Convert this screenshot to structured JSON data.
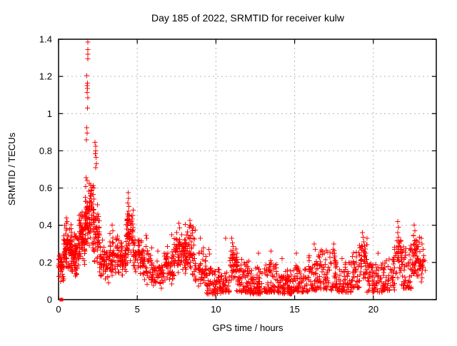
{
  "chart_data": {
    "type": "scatter",
    "title": "Day 185 of 2022, SRMTID for receiver kulw",
    "xlabel": "GPS time / hours",
    "ylabel": "SRMTID / TECUs",
    "xlim": [
      0,
      24
    ],
    "ylim": [
      0,
      1.4
    ],
    "xticks": [
      0,
      5,
      10,
      15,
      20
    ],
    "yticks": [
      0,
      0.2,
      0.4,
      0.6,
      0.8,
      1,
      1.2,
      1.4
    ],
    "grid": true,
    "legend": "none",
    "marker": {
      "shape": "plus",
      "size": 7
    },
    "colors": {
      "marker": "#ff0000",
      "grid": "#b5b5b5",
      "axis": "#000000",
      "text": "#000000",
      "background": "#ffffff"
    },
    "origin_marker": {
      "x": 0.18,
      "y": 0.0,
      "shape": "filled-square",
      "size": 5
    },
    "notable_points": [
      [
        1.86,
        1.385
      ],
      [
        1.85,
        1.345
      ],
      [
        1.87,
        1.32
      ],
      [
        1.86,
        1.295
      ],
      [
        1.8,
        1.205
      ],
      [
        1.83,
        1.165
      ],
      [
        1.81,
        1.15
      ],
      [
        1.84,
        1.135
      ],
      [
        1.82,
        1.115
      ],
      [
        1.85,
        1.085
      ],
      [
        1.83,
        1.03
      ],
      [
        1.8,
        0.925
      ],
      [
        1.82,
        0.895
      ],
      [
        1.78,
        0.86
      ],
      [
        2.32,
        0.845
      ],
      [
        2.35,
        0.825
      ],
      [
        2.36,
        0.8
      ],
      [
        2.33,
        0.785
      ],
      [
        2.38,
        0.765
      ],
      [
        2.4,
        0.73
      ],
      [
        2.35,
        0.71
      ],
      [
        1.75,
        0.655
      ],
      [
        1.82,
        0.64
      ],
      [
        1.95,
        0.625
      ],
      [
        2.05,
        0.615
      ],
      [
        2.25,
        0.6
      ],
      [
        2.1,
        0.585
      ],
      [
        2.2,
        0.565
      ],
      [
        1.7,
        0.55
      ],
      [
        4.42,
        0.575
      ],
      [
        4.45,
        0.545
      ],
      [
        4.4,
        0.52
      ],
      [
        4.47,
        0.5
      ],
      [
        4.44,
        0.475
      ],
      [
        4.5,
        0.455
      ],
      [
        4.38,
        0.43
      ],
      [
        4.55,
        0.42
      ],
      [
        4.6,
        0.4
      ],
      [
        0.5,
        0.44
      ],
      [
        0.55,
        0.42
      ],
      [
        1.4,
        0.46
      ],
      [
        1.5,
        0.47
      ],
      [
        1.45,
        0.44
      ],
      [
        3.4,
        0.4
      ],
      [
        3.45,
        0.37
      ],
      [
        2.8,
        0.32
      ],
      [
        5.55,
        0.345
      ],
      [
        5.6,
        0.33
      ],
      [
        6.3,
        0.26
      ],
      [
        7.2,
        0.35
      ],
      [
        7.65,
        0.41
      ],
      [
        7.7,
        0.385
      ],
      [
        8.35,
        0.425
      ],
      [
        8.4,
        0.4
      ],
      [
        8.3,
        0.39
      ],
      [
        8.5,
        0.37
      ],
      [
        9.0,
        0.33
      ],
      [
        9.55,
        0.27
      ],
      [
        9.6,
        0.245
      ],
      [
        10.62,
        0.33
      ],
      [
        11.0,
        0.33
      ],
      [
        11.05,
        0.305
      ],
      [
        11.1,
        0.285
      ],
      [
        10.95,
        0.26
      ],
      [
        11.05,
        0.24
      ],
      [
        12.7,
        0.25
      ],
      [
        13.5,
        0.26
      ],
      [
        14.2,
        0.22
      ],
      [
        15.1,
        0.25
      ],
      [
        16.25,
        0.3
      ],
      [
        16.3,
        0.27
      ],
      [
        17.5,
        0.3
      ],
      [
        17.45,
        0.27
      ],
      [
        18.0,
        0.22
      ],
      [
        19.3,
        0.36
      ],
      [
        19.35,
        0.335
      ],
      [
        19.4,
        0.31
      ],
      [
        19.25,
        0.29
      ],
      [
        20.3,
        0.25
      ],
      [
        21.55,
        0.42
      ],
      [
        21.6,
        0.39
      ],
      [
        21.55,
        0.36
      ],
      [
        21.6,
        0.335
      ],
      [
        21.65,
        0.31
      ],
      [
        22.6,
        0.4
      ],
      [
        22.65,
        0.37
      ],
      [
        22.55,
        0.345
      ],
      [
        22.7,
        0.32
      ],
      [
        23.05,
        0.33
      ],
      [
        23.1,
        0.3
      ],
      [
        23.15,
        0.27
      ]
    ],
    "density_bands": [
      {
        "x0": 0.0,
        "x1": 0.35,
        "y0": 0.09,
        "y1": 0.27,
        "n": 40,
        "bias": "center"
      },
      {
        "x0": 0.3,
        "x1": 0.9,
        "y0": 0.13,
        "y1": 0.42,
        "n": 95,
        "bias": "center"
      },
      {
        "x0": 0.9,
        "x1": 1.3,
        "y0": 0.1,
        "y1": 0.37,
        "n": 60,
        "bias": "center"
      },
      {
        "x0": 1.3,
        "x1": 1.75,
        "y0": 0.18,
        "y1": 0.47,
        "n": 75,
        "bias": "center"
      },
      {
        "x0": 1.7,
        "x1": 2.25,
        "y0": 0.26,
        "y1": 0.62,
        "n": 85,
        "bias": "center"
      },
      {
        "x0": 2.2,
        "x1": 2.6,
        "y0": 0.16,
        "y1": 0.55,
        "n": 55,
        "bias": "center"
      },
      {
        "x0": 2.6,
        "x1": 3.2,
        "y0": 0.08,
        "y1": 0.31,
        "n": 60,
        "bias": "center"
      },
      {
        "x0": 3.2,
        "x1": 3.85,
        "y0": 0.1,
        "y1": 0.37,
        "n": 65,
        "bias": "center"
      },
      {
        "x0": 3.8,
        "x1": 4.3,
        "y0": 0.12,
        "y1": 0.33,
        "n": 50,
        "bias": "center"
      },
      {
        "x0": 4.3,
        "x1": 4.75,
        "y0": 0.18,
        "y1": 0.5,
        "n": 60,
        "bias": "center"
      },
      {
        "x0": 4.7,
        "x1": 5.3,
        "y0": 0.12,
        "y1": 0.38,
        "n": 55,
        "bias": "center"
      },
      {
        "x0": 5.3,
        "x1": 5.95,
        "y0": 0.08,
        "y1": 0.31,
        "n": 50,
        "bias": "center"
      },
      {
        "x0": 5.9,
        "x1": 6.7,
        "y0": 0.05,
        "y1": 0.23,
        "n": 60,
        "bias": "center"
      },
      {
        "x0": 6.7,
        "x1": 7.35,
        "y0": 0.08,
        "y1": 0.3,
        "n": 55,
        "bias": "center"
      },
      {
        "x0": 7.3,
        "x1": 8.05,
        "y0": 0.12,
        "y1": 0.38,
        "n": 70,
        "bias": "center"
      },
      {
        "x0": 8.0,
        "x1": 8.7,
        "y0": 0.1,
        "y1": 0.42,
        "n": 70,
        "bias": "center"
      },
      {
        "x0": 8.65,
        "x1": 9.4,
        "y0": 0.06,
        "y1": 0.29,
        "n": 55,
        "bias": "center"
      },
      {
        "x0": 9.4,
        "x1": 10.3,
        "y0": 0.03,
        "y1": 0.17,
        "n": 75,
        "bias": "low"
      },
      {
        "x0": 10.3,
        "x1": 10.85,
        "y0": 0.04,
        "y1": 0.15,
        "n": 45,
        "bias": "low"
      },
      {
        "x0": 10.85,
        "x1": 11.35,
        "y0": 0.08,
        "y1": 0.3,
        "n": 45,
        "bias": "center"
      },
      {
        "x0": 11.3,
        "x1": 12.1,
        "y0": 0.04,
        "y1": 0.22,
        "n": 70,
        "bias": "low"
      },
      {
        "x0": 12.1,
        "x1": 13.0,
        "y0": 0.03,
        "y1": 0.18,
        "n": 75,
        "bias": "low"
      },
      {
        "x0": 13.0,
        "x1": 13.95,
        "y0": 0.04,
        "y1": 0.21,
        "n": 75,
        "bias": "low"
      },
      {
        "x0": 13.9,
        "x1": 14.9,
        "y0": 0.03,
        "y1": 0.16,
        "n": 80,
        "bias": "low"
      },
      {
        "x0": 14.9,
        "x1": 15.9,
        "y0": 0.04,
        "y1": 0.2,
        "n": 75,
        "bias": "low"
      },
      {
        "x0": 15.9,
        "x1": 16.6,
        "y0": 0.05,
        "y1": 0.24,
        "n": 55,
        "bias": "low"
      },
      {
        "x0": 16.6,
        "x1": 17.65,
        "y0": 0.05,
        "y1": 0.27,
        "n": 75,
        "bias": "low"
      },
      {
        "x0": 17.6,
        "x1": 18.65,
        "y0": 0.04,
        "y1": 0.2,
        "n": 75,
        "bias": "low"
      },
      {
        "x0": 18.6,
        "x1": 19.15,
        "y0": 0.06,
        "y1": 0.26,
        "n": 40,
        "bias": "low"
      },
      {
        "x0": 19.1,
        "x1": 19.6,
        "y0": 0.1,
        "y1": 0.34,
        "n": 45,
        "bias": "center"
      },
      {
        "x0": 19.6,
        "x1": 20.65,
        "y0": 0.04,
        "y1": 0.2,
        "n": 70,
        "bias": "low"
      },
      {
        "x0": 20.6,
        "x1": 21.35,
        "y0": 0.05,
        "y1": 0.23,
        "n": 55,
        "bias": "low"
      },
      {
        "x0": 21.3,
        "x1": 21.85,
        "y0": 0.08,
        "y1": 0.36,
        "n": 42,
        "bias": "center"
      },
      {
        "x0": 21.8,
        "x1": 22.45,
        "y0": 0.06,
        "y1": 0.3,
        "n": 52,
        "bias": "low"
      },
      {
        "x0": 22.4,
        "x1": 22.95,
        "y0": 0.1,
        "y1": 0.38,
        "n": 52,
        "bias": "center"
      },
      {
        "x0": 22.9,
        "x1": 23.3,
        "y0": 0.08,
        "y1": 0.28,
        "n": 26,
        "bias": "center"
      }
    ]
  }
}
